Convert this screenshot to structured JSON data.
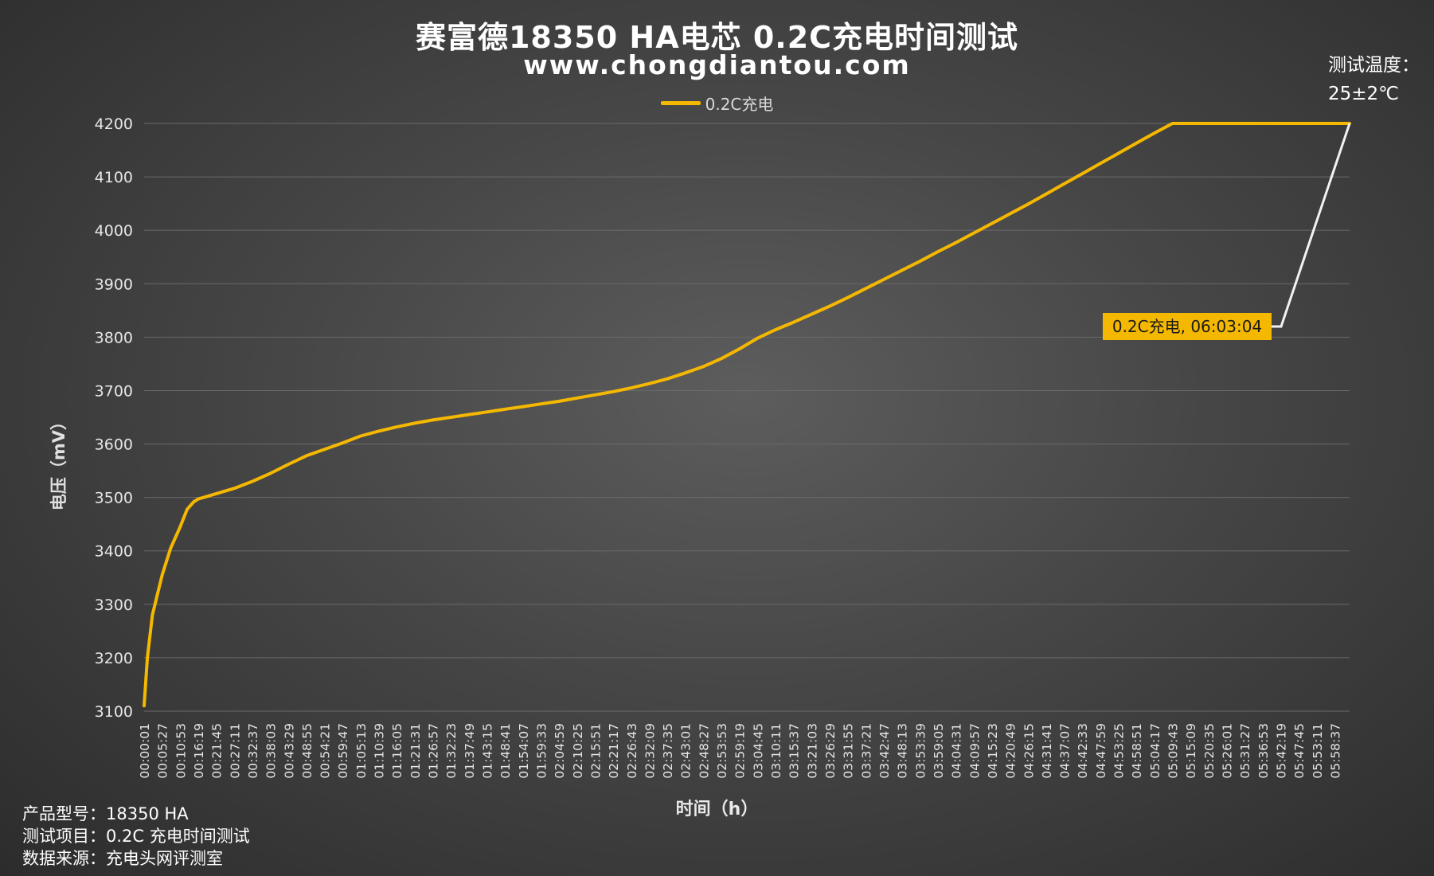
{
  "title": "赛富德18350 HA电芯 0.2C充电时间测试",
  "subtitle": "www.chongdiantou.com",
  "test_temperature": {
    "label": "测试温度：",
    "value": "25±2℃"
  },
  "info": {
    "product_model": "产品型号：18350 HA",
    "test_item": "测试项目：0.2C 充电时间测试",
    "data_source": "数据来源：充电头网评测室"
  },
  "chart_data": {
    "type": "line",
    "title": "赛富德18350 HA电芯 0.2C充电时间测试",
    "xlabel": "时间（h）",
    "ylabel": "电压（mV）",
    "ylim": [
      3100,
      4200
    ],
    "yticks": [
      3100,
      3200,
      3300,
      3400,
      3500,
      3600,
      3700,
      3800,
      3900,
      4000,
      4100,
      4200
    ],
    "grid": true,
    "legend_position": "top-center",
    "line_color": "#f5b800",
    "xticks": [
      "00:00:01",
      "00:05:27",
      "00:10:53",
      "00:16:19",
      "00:21:45",
      "00:27:11",
      "00:32:37",
      "00:38:03",
      "00:43:29",
      "00:48:55",
      "00:54:21",
      "00:59:47",
      "01:05:13",
      "01:10:39",
      "01:16:05",
      "01:21:31",
      "01:26:57",
      "01:32:23",
      "01:37:49",
      "01:43:15",
      "01:48:41",
      "01:54:07",
      "01:59:33",
      "02:04:59",
      "02:10:25",
      "02:15:51",
      "02:21:17",
      "02:26:43",
      "02:32:09",
      "02:37:35",
      "02:43:01",
      "02:48:27",
      "02:53:53",
      "02:59:19",
      "03:04:45",
      "03:10:11",
      "03:15:37",
      "03:21:03",
      "03:26:29",
      "03:31:55",
      "03:37:21",
      "03:42:47",
      "03:48:13",
      "03:53:39",
      "03:59:05",
      "04:04:31",
      "04:09:57",
      "04:15:23",
      "04:20:49",
      "04:26:15",
      "04:31:41",
      "04:37:07",
      "04:42:33",
      "04:47:59",
      "04:53:25",
      "04:58:51",
      "05:04:17",
      "05:09:43",
      "05:15:09",
      "05:20:35",
      "05:26:01",
      "05:31:27",
      "05:36:53",
      "05:42:19",
      "05:47:45",
      "05:53:11",
      "05:58:37"
    ],
    "series": [
      {
        "name": "0.2C充电",
        "points": [
          {
            "x": "00:00:01",
            "y": 3110
          },
          {
            "x": "00:01:00",
            "y": 3200
          },
          {
            "x": "00:02:30",
            "y": 3280
          },
          {
            "x": "00:05:27",
            "y": 3355
          },
          {
            "x": "00:08:00",
            "y": 3405
          },
          {
            "x": "00:10:53",
            "y": 3445
          },
          {
            "x": "00:13:00",
            "y": 3478
          },
          {
            "x": "00:15:00",
            "y": 3492
          },
          {
            "x": "00:16:19",
            "y": 3497
          },
          {
            "x": "00:21:45",
            "y": 3507
          },
          {
            "x": "00:27:11",
            "y": 3517
          },
          {
            "x": "00:32:37",
            "y": 3530
          },
          {
            "x": "00:38:03",
            "y": 3545
          },
          {
            "x": "00:43:29",
            "y": 3562
          },
          {
            "x": "00:48:55",
            "y": 3578
          },
          {
            "x": "00:54:21",
            "y": 3590
          },
          {
            "x": "00:59:47",
            "y": 3602
          },
          {
            "x": "01:05:13",
            "y": 3615
          },
          {
            "x": "01:10:39",
            "y": 3624
          },
          {
            "x": "01:16:05",
            "y": 3632
          },
          {
            "x": "01:21:31",
            "y": 3639
          },
          {
            "x": "01:26:57",
            "y": 3645
          },
          {
            "x": "01:32:23",
            "y": 3650
          },
          {
            "x": "01:37:49",
            "y": 3655
          },
          {
            "x": "01:43:15",
            "y": 3660
          },
          {
            "x": "01:48:41",
            "y": 3665
          },
          {
            "x": "01:54:07",
            "y": 3670
          },
          {
            "x": "01:59:33",
            "y": 3675
          },
          {
            "x": "02:04:59",
            "y": 3680
          },
          {
            "x": "02:10:25",
            "y": 3686
          },
          {
            "x": "02:15:51",
            "y": 3692
          },
          {
            "x": "02:21:17",
            "y": 3698
          },
          {
            "x": "02:26:43",
            "y": 3705
          },
          {
            "x": "02:32:09",
            "y": 3713
          },
          {
            "x": "02:37:35",
            "y": 3722
          },
          {
            "x": "02:43:01",
            "y": 3733
          },
          {
            "x": "02:48:27",
            "y": 3745
          },
          {
            "x": "02:53:53",
            "y": 3760
          },
          {
            "x": "02:59:19",
            "y": 3778
          },
          {
            "x": "03:04:45",
            "y": 3798
          },
          {
            "x": "03:10:11",
            "y": 3814
          },
          {
            "x": "03:15:37",
            "y": 3828
          },
          {
            "x": "03:21:03",
            "y": 3843
          },
          {
            "x": "03:26:29",
            "y": 3858
          },
          {
            "x": "03:31:55",
            "y": 3874
          },
          {
            "x": "03:37:21",
            "y": 3891
          },
          {
            "x": "03:42:47",
            "y": 3908
          },
          {
            "x": "03:48:13",
            "y": 3925
          },
          {
            "x": "03:53:39",
            "y": 3942
          },
          {
            "x": "03:59:05",
            "y": 3960
          },
          {
            "x": "04:04:31",
            "y": 3977
          },
          {
            "x": "04:09:57",
            "y": 3995
          },
          {
            "x": "04:15:23",
            "y": 4013
          },
          {
            "x": "04:20:49",
            "y": 4031
          },
          {
            "x": "04:26:15",
            "y": 4049
          },
          {
            "x": "04:31:41",
            "y": 4068
          },
          {
            "x": "04:37:07",
            "y": 4087
          },
          {
            "x": "04:42:33",
            "y": 4106
          },
          {
            "x": "04:47:59",
            "y": 4125
          },
          {
            "x": "04:53:25",
            "y": 4144
          },
          {
            "x": "04:58:51",
            "y": 4163
          },
          {
            "x": "05:04:17",
            "y": 4182
          },
          {
            "x": "05:09:43",
            "y": 4200
          },
          {
            "x": "05:15:09",
            "y": 4200
          },
          {
            "x": "05:20:35",
            "y": 4200
          },
          {
            "x": "05:26:01",
            "y": 4200
          },
          {
            "x": "05:31:27",
            "y": 4200
          },
          {
            "x": "05:36:53",
            "y": 4200
          },
          {
            "x": "05:42:19",
            "y": 4200
          },
          {
            "x": "05:47:45",
            "y": 4200
          },
          {
            "x": "05:53:11",
            "y": 4200
          },
          {
            "x": "05:58:37",
            "y": 4200
          },
          {
            "x": "06:03:04",
            "y": 4200
          }
        ]
      }
    ],
    "annotation": {
      "text": "0.2C充电, 06:03:04",
      "x": "06:03:04",
      "y": 4200
    }
  }
}
